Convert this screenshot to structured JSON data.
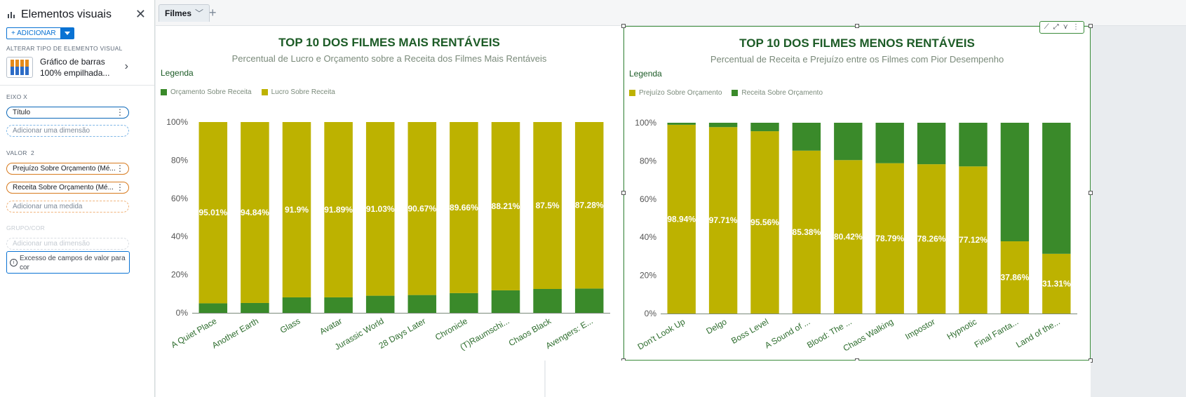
{
  "panel": {
    "title": "Elementos visuais",
    "add_label": "+ ADICIONAR",
    "change_type_label": "ALTERAR TIPO DE ELEMENTO VISUAL",
    "visual_type": "Gráfico de barras 100% empilhada...",
    "xaxis_label": "EIXO X",
    "xaxis_field": "Título",
    "xaxis_add": "Adicionar uma dimensão",
    "value_label": "VALOR",
    "value_count": "2",
    "value_fields": [
      "Prejuízo Sobre Orçamento (Mé...",
      "Receita Sobre Orçamento (Mé..."
    ],
    "value_add": "Adicionar uma medida",
    "group_label": "GRUPO/COR",
    "group_add": "Adicionar uma dimensão",
    "warning": "Excesso de campos de valor para cor"
  },
  "tabs": {
    "active": "Filmes"
  },
  "colors": {
    "green": "#3a8a2a",
    "olive": "#bdb200"
  },
  "chart_data": [
    {
      "type": "bar",
      "stacked": "100%",
      "title": "TOP 10 DOS FILMES MAIS RENTÁVEIS",
      "subtitle": "Percentual de Lucro e Orçamento sobre a Receita dos Filmes Mais Rentáveis",
      "legend_title": "Legenda",
      "legend": "top-left",
      "categories": [
        "A Quiet Place",
        "Another Earth",
        "Glass",
        "Avatar",
        "Jurassic World",
        "28 Days Later",
        "Chronicle",
        "(T)Raumschi...",
        "Chaos Black",
        "Avengers: E..."
      ],
      "series": [
        {
          "name": "Orçamento Sobre Receita",
          "color": "#3a8a2a",
          "values": [
            4.99,
            5.16,
            8.1,
            8.11,
            8.97,
            9.33,
            10.34,
            11.79,
            12.5,
            12.72
          ]
        },
        {
          "name": "Lucro Sobre Receita",
          "color": "#bdb200",
          "values": [
            95.01,
            94.84,
            91.9,
            91.89,
            91.03,
            90.67,
            89.66,
            88.21,
            87.5,
            87.28
          ]
        }
      ],
      "labels": [
        "95.01%",
        "94.84%",
        "91.9%",
        "91.89%",
        "91.03%",
        "90.67%",
        "89.66%",
        "88.21%",
        "87.5%",
        "87.28%"
      ],
      "yticks": [
        "0%",
        "20%",
        "40%",
        "60%",
        "80%",
        "100%"
      ],
      "ylim": [
        0,
        100
      ]
    },
    {
      "type": "bar",
      "stacked": "100%",
      "title": "TOP 10 DOS FILMES MENOS RENTÁVEIS",
      "subtitle": "Percentual de Receita e Prejuízo entre os Filmes com Pior Desempenho",
      "legend_title": "Legenda",
      "legend": "top-left",
      "categories": [
        "Don't Look Up",
        "Delgo",
        "Boss Level",
        "A Sound of ...",
        "Blood: The ...",
        "Chaos Walking",
        "Impostor",
        "Hypnotic",
        "Final Fanta...",
        "Land of the..."
      ],
      "series": [
        {
          "name": "Prejuízo Sobre Orçamento",
          "color": "#bdb200",
          "values": [
            98.94,
            97.71,
            95.56,
            85.38,
            80.42,
            78.79,
            78.26,
            77.12,
            37.86,
            31.31
          ]
        },
        {
          "name": "Receita Sobre Orçamento",
          "color": "#3a8a2a",
          "values": [
            1.06,
            2.29,
            4.44,
            14.62,
            19.58,
            21.21,
            21.74,
            22.88,
            62.14,
            68.69
          ]
        }
      ],
      "labels": [
        "98.94%",
        "97.71%",
        "95.56%",
        "85.38%",
        "80.42%",
        "78.79%",
        "78.26%",
        "77.12%",
        "37.86%",
        "31.31%"
      ],
      "yticks": [
        "0%",
        "20%",
        "40%",
        "60%",
        "80%",
        "100%"
      ],
      "ylim": [
        0,
        100
      ]
    }
  ]
}
